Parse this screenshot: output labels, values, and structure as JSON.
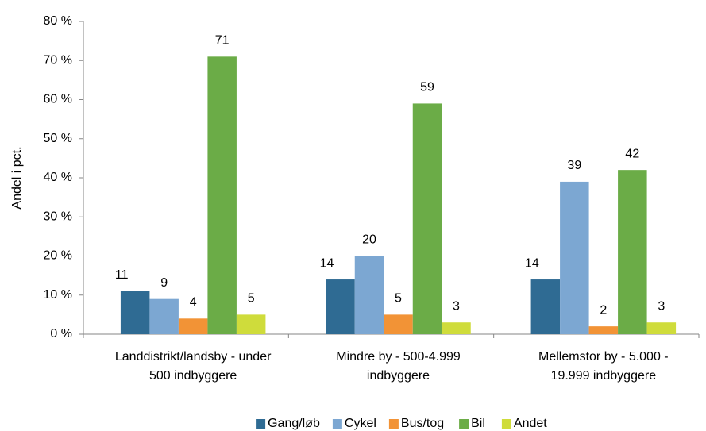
{
  "chart_data": {
    "type": "bar",
    "y_label": "Andel i pct.",
    "categories": [
      "Landdistrikt/landsby - under 500 indbyggere",
      "Mindre by - 500-4.999 indbyggere",
      "Mellemstor by - 5.000 - 19.999 indbyggere"
    ],
    "series": [
      {
        "name": "Gang/løb",
        "color": "#2f6b93",
        "values": [
          11,
          14,
          14
        ]
      },
      {
        "name": "Cykel",
        "color": "#7ca7d2",
        "values": [
          9,
          20,
          39
        ]
      },
      {
        "name": "Bus/tog",
        "color": "#f29336",
        "values": [
          4,
          5,
          2
        ]
      },
      {
        "name": "Bil",
        "color": "#6bac47",
        "values": [
          71,
          59,
          42
        ]
      },
      {
        "name": "Andet",
        "color": "#cfdc3b",
        "values": [
          5,
          3,
          3
        ]
      }
    ],
    "ylim": [
      0,
      80
    ],
    "yticks": [
      {
        "value": 0,
        "label": "0 %"
      },
      {
        "value": 10,
        "label": "10 %"
      },
      {
        "value": 20,
        "label": "20 %"
      },
      {
        "value": 30,
        "label": "30 %"
      },
      {
        "value": 40,
        "label": "40 %"
      },
      {
        "value": 50,
        "label": "50 %"
      },
      {
        "value": 60,
        "label": "60 %"
      },
      {
        "value": 70,
        "label": "70 %"
      },
      {
        "value": 80,
        "label": "80 %"
      }
    ],
    "legend": "bottom"
  }
}
